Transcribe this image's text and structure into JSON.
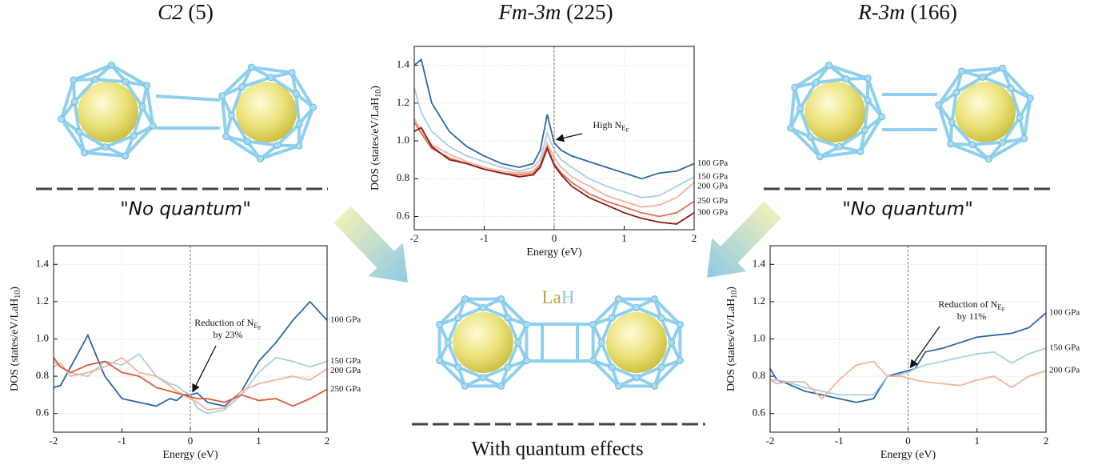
{
  "panels": [
    {
      "title_italic": "C2",
      "title_rest": "(5)",
      "caption": "\"No quantum\""
    },
    {
      "title_italic": "Fm-3m",
      "title_rest": "(225)"
    },
    {
      "title_italic": "R-3m",
      "title_rest": "(166)",
      "caption": "\"No quantum\""
    }
  ],
  "center_label": {
    "la": "La",
    "h": "H",
    "caption": "With quantum effects"
  },
  "chart_data": [
    {
      "type": "line",
      "x_label": "Energy (eV)",
      "y_label": {
        "main": "DOS (states/eV/LaH",
        "sub": "10",
        "end": ")"
      },
      "x": [
        -2,
        -1.9,
        -1.75,
        -1.5,
        -1.25,
        -1,
        -0.75,
        -0.5,
        -0.3,
        -0.2,
        -0.1,
        0,
        0.1,
        0.25,
        0.5,
        0.75,
        1,
        1.25,
        1.5,
        1.75,
        2
      ],
      "xlim": [
        -2,
        2
      ],
      "xticks": [
        -2,
        -1,
        0,
        1,
        2
      ],
      "ylim": [
        0.5,
        1.5
      ],
      "yticks": [
        0.6,
        0.8,
        {
          "value": 1,
          "label": "1.0"
        },
        1.2,
        1.4
      ],
      "grid": true,
      "vline": 0,
      "series": [
        {
          "name": "100 GPa",
          "color": "#2b66a8",
          "values": [
            0.74,
            0.75,
            0.85,
            1.02,
            0.8,
            0.68,
            0.66,
            0.64,
            0.68,
            0.67,
            0.7,
            0.7,
            0.71,
            0.66,
            0.64,
            0.72,
            0.88,
            0.98,
            1.1,
            1.2,
            1.1
          ]
        },
        {
          "name": "150 GPa",
          "color": "#a9cfe3",
          "values": [
            0.88,
            0.85,
            0.82,
            0.8,
            0.88,
            0.86,
            0.92,
            0.8,
            0.76,
            0.75,
            0.72,
            0.7,
            0.63,
            0.6,
            0.62,
            0.7,
            0.82,
            0.9,
            0.88,
            0.85,
            0.88
          ]
        },
        {
          "name": "200 GPa",
          "color": "#f4b39a",
          "values": [
            0.85,
            0.87,
            0.8,
            0.82,
            0.85,
            0.9,
            0.82,
            0.8,
            0.75,
            0.72,
            0.7,
            0.68,
            0.66,
            0.62,
            0.63,
            0.72,
            0.76,
            0.78,
            0.8,
            0.78,
            0.84
          ]
        },
        {
          "name": "250 GPa",
          "color": "#de5a36",
          "values": [
            0.9,
            0.85,
            0.82,
            0.86,
            0.88,
            0.82,
            0.8,
            0.74,
            0.72,
            0.71,
            0.7,
            0.69,
            0.68,
            0.68,
            0.66,
            0.7,
            0.67,
            0.68,
            0.64,
            0.68,
            0.73
          ]
        }
      ],
      "annotation": {
        "text": "Reduction of N",
        "sub": "E",
        "subsub": "F",
        "line2": "by 23%"
      }
    },
    {
      "type": "line",
      "x_label": "Energy (eV)",
      "y_label": {
        "main": "DOS (states/eV/LaH",
        "sub": "10",
        "end": ")"
      },
      "x": [
        -2,
        -1.9,
        -1.75,
        -1.5,
        -1.25,
        -1,
        -0.75,
        -0.5,
        -0.3,
        -0.2,
        -0.1,
        0,
        0.1,
        0.25,
        0.5,
        0.75,
        1,
        1.25,
        1.5,
        1.75,
        2
      ],
      "xlim": [
        -2,
        2
      ],
      "xticks": [
        -2,
        -1,
        0,
        1,
        2
      ],
      "ylim": [
        0.53,
        1.5
      ],
      "yticks": [
        0.6,
        0.8,
        {
          "value": 1,
          "label": "1.0"
        },
        1.2,
        1.4
      ],
      "grid": true,
      "vline": 0,
      "series": [
        {
          "name": "100 GPa",
          "color": "#2b66a8",
          "values": [
            1.4,
            1.43,
            1.2,
            1.05,
            0.97,
            0.92,
            0.88,
            0.86,
            0.88,
            0.95,
            1.14,
            0.99,
            0.95,
            0.92,
            0.89,
            0.86,
            0.83,
            0.8,
            0.83,
            0.84,
            0.88
          ]
        },
        {
          "name": "150 GPa",
          "color": "#a9cfe3",
          "values": [
            1.28,
            1.15,
            1.05,
            0.97,
            0.92,
            0.89,
            0.86,
            0.84,
            0.86,
            0.9,
            1.04,
            0.95,
            0.9,
            0.86,
            0.8,
            0.76,
            0.73,
            0.7,
            0.71,
            0.76,
            0.81
          ]
        },
        {
          "name": "200 GPa",
          "color": "#f4b39a",
          "values": [
            1.12,
            1.05,
            0.98,
            0.93,
            0.89,
            0.86,
            0.84,
            0.83,
            0.84,
            0.88,
            0.99,
            0.91,
            0.86,
            0.81,
            0.76,
            0.71,
            0.68,
            0.65,
            0.66,
            0.7,
            0.78
          ]
        },
        {
          "name": "250 GPa",
          "color": "#e0705a",
          "values": [
            1.1,
            1.04,
            0.96,
            0.91,
            0.88,
            0.85,
            0.83,
            0.82,
            0.83,
            0.87,
            0.97,
            0.88,
            0.83,
            0.78,
            0.72,
            0.68,
            0.65,
            0.62,
            0.6,
            0.62,
            0.68
          ]
        },
        {
          "name": "300 GPa",
          "color": "#8b1a1a",
          "values": [
            1.05,
            1.07,
            0.97,
            0.9,
            0.88,
            0.85,
            0.83,
            0.81,
            0.82,
            0.86,
            0.96,
            0.87,
            0.82,
            0.76,
            0.7,
            0.66,
            0.62,
            0.59,
            0.57,
            0.56,
            0.62
          ]
        }
      ],
      "annotation": {
        "text": "High N",
        "sub": "E",
        "subsub": "F"
      }
    },
    {
      "type": "line",
      "x_label": "Energy (eV)",
      "y_label": {
        "main": "DOS (states/eV/LaH",
        "sub": "10",
        "end": ")"
      },
      "x": [
        -2,
        -1.9,
        -1.75,
        -1.5,
        -1.25,
        -1,
        -0.75,
        -0.5,
        -0.3,
        -0.2,
        -0.1,
        0,
        0.1,
        0.25,
        0.5,
        0.75,
        1,
        1.25,
        1.5,
        1.75,
        2
      ],
      "xlim": [
        -2,
        2
      ],
      "xticks": [
        -2,
        -1,
        0,
        1,
        2
      ],
      "ylim": [
        0.5,
        1.5
      ],
      "yticks": [
        0.6,
        0.8,
        {
          "value": 1,
          "label": "1.0"
        },
        1.2,
        1.4
      ],
      "grid": true,
      "vline": 0,
      "series": [
        {
          "name": "100 GPa",
          "color": "#2b66a8",
          "values": [
            0.84,
            0.78,
            0.76,
            0.72,
            0.7,
            0.68,
            0.66,
            0.68,
            0.8,
            0.81,
            0.82,
            0.83,
            0.84,
            0.93,
            0.95,
            0.98,
            1.01,
            1.02,
            1.03,
            1.06,
            1.14
          ]
        },
        {
          "name": "150 GPa",
          "color": "#a9cfe3",
          "values": [
            0.78,
            0.78,
            0.77,
            0.74,
            0.72,
            0.7,
            0.7,
            0.7,
            0.8,
            0.8,
            0.81,
            0.82,
            0.84,
            0.86,
            0.88,
            0.9,
            0.92,
            0.93,
            0.87,
            0.92,
            0.95
          ]
        },
        {
          "name": "200 GPa",
          "color": "#f4b39a",
          "values": [
            0.78,
            0.76,
            0.77,
            0.77,
            0.68,
            0.78,
            0.86,
            0.88,
            0.8,
            0.8,
            0.8,
            0.79,
            0.78,
            0.77,
            0.76,
            0.75,
            0.78,
            0.8,
            0.74,
            0.8,
            0.83
          ]
        }
      ],
      "annotation": {
        "text": "Reduction of N",
        "sub": "E",
        "subsub": "F",
        "line2": "by 11%"
      }
    }
  ]
}
